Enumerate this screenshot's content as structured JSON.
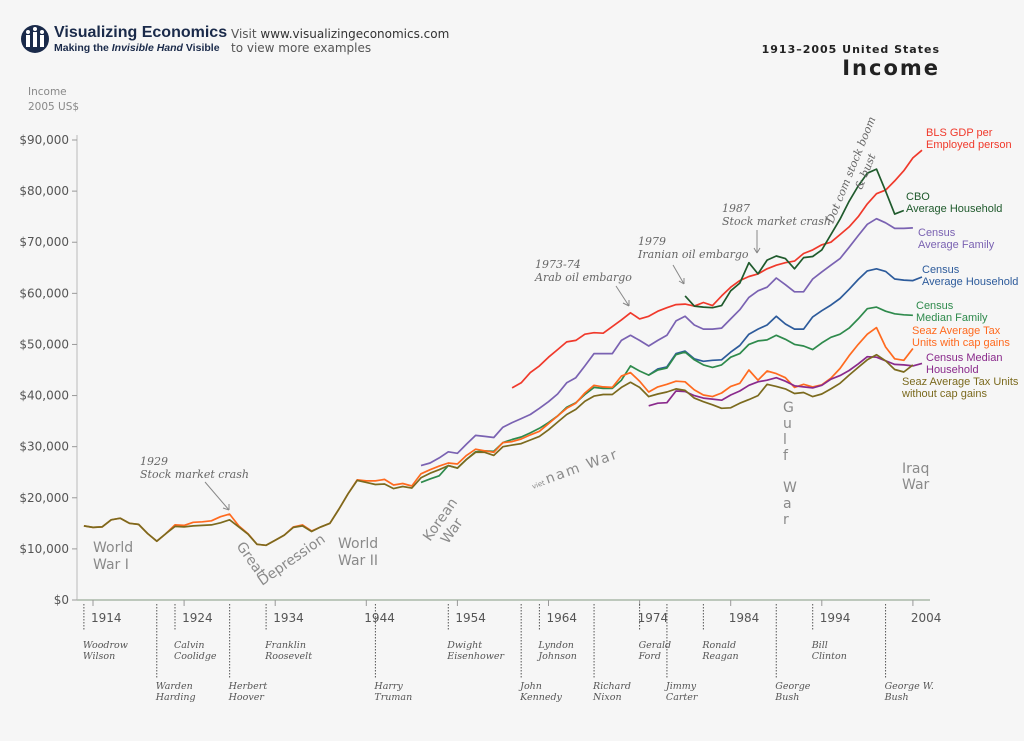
{
  "header": {
    "logo_title": "Visualizing Economics",
    "logo_tagline_pre": "Making the ",
    "logo_tagline_em": "Invisible Hand",
    "logo_tagline_post": " Visible",
    "visit_pre": "Visit ",
    "visit_url": "www.visualizingeconomics.com",
    "visit_line2": "to view more examples",
    "supertitle": "1913–2005 United States",
    "title": "Income"
  },
  "chart_data": {
    "type": "line",
    "title": "Income",
    "subtitle": "1913–2005 United States",
    "ylabel": [
      "Income",
      "2005 US$"
    ],
    "xlim": [
      1913,
      2005
    ],
    "ylim": [
      0,
      90000
    ],
    "yticks": [
      0,
      10000,
      20000,
      30000,
      40000,
      50000,
      60000,
      70000,
      80000,
      90000
    ],
    "ytick_labels": [
      "$0",
      "$10,000",
      "$20,000",
      "$30,000",
      "$40,000",
      "$50,000",
      "$60,000",
      "$70,000",
      "$80,000",
      "$90,000"
    ],
    "xticks": [
      1914,
      1924,
      1934,
      1944,
      1954,
      1964,
      1974,
      1984,
      1994,
      2004
    ],
    "grid": false,
    "legend": "right, inline labels at line ends",
    "series": [
      {
        "name": "BLS GDP per Employed person",
        "label": [
          "BLS GDP per",
          "Employed person"
        ],
        "color": "#f0392b",
        "start": 1960,
        "values": [
          41500,
          42500,
          44500,
          45800,
          47500,
          49000,
          50500,
          50800,
          52000,
          52300,
          52200,
          53500,
          54800,
          56200,
          55000,
          55500,
          56500,
          57200,
          57800,
          57900,
          57500,
          58200,
          57600,
          59500,
          61200,
          62500,
          63300,
          63800,
          64800,
          65500,
          66000,
          66300,
          67800,
          68500,
          69500,
          70000,
          71500,
          73000,
          75000,
          77500,
          79500,
          80200,
          82000,
          84000,
          86500,
          88000
        ]
      },
      {
        "name": "CBO Average Household",
        "label": [
          "CBO",
          "Average Household"
        ],
        "color": "#1f5a2c",
        "start": 1979,
        "values": [
          59500,
          57500,
          57300,
          57200,
          57600,
          60500,
          62000,
          66000,
          63800,
          66500,
          67300,
          66800,
          64800,
          67000,
          67200,
          68500,
          71500,
          74500,
          78000,
          81000,
          83500,
          84300,
          80000,
          75500,
          76200
        ]
      },
      {
        "name": "Census Average Family",
        "label": [
          "Census",
          "Average Family"
        ],
        "color": "#7a62b2",
        "start": 1950,
        "values": [
          26300,
          26800,
          27800,
          29000,
          28700,
          30500,
          32200,
          32000,
          31800,
          33800,
          34700,
          35500,
          36300,
          37500,
          38800,
          40300,
          42500,
          43500,
          45800,
          48200,
          48200,
          48200,
          50800,
          51800,
          50800,
          49700,
          50800,
          51800,
          54600,
          55500,
          53800,
          53000,
          53000,
          53200,
          55000,
          56800,
          59200,
          60500,
          61200,
          63000,
          61700,
          60300,
          60300,
          62800,
          64200,
          65500,
          66800,
          69000,
          71300,
          73500,
          74600,
          73800,
          72700,
          72700,
          72800
        ]
      },
      {
        "name": "Census Average Household",
        "label": [
          "Census",
          "Average Household"
        ],
        "color": "#2d5b9b",
        "start": 1975,
        "values": [
          44000,
          45200,
          45600,
          48200,
          48700,
          47200,
          46700,
          46900,
          47000,
          48500,
          49800,
          52000,
          53000,
          53800,
          55500,
          54000,
          53000,
          53000,
          55400,
          56600,
          57700,
          59000,
          60800,
          62700,
          64400,
          64800,
          64300,
          62800,
          62600,
          62500,
          63200
        ]
      },
      {
        "name": "Census Median Family",
        "label": [
          "Census",
          "Median Family"
        ],
        "color": "#2e8a4c",
        "start": 1950,
        "values": [
          23000,
          23700,
          24300,
          26300,
          25800,
          27500,
          29000,
          29200,
          29100,
          30800,
          31400,
          31900,
          32700,
          33600,
          34700,
          36000,
          37700,
          38600,
          40200,
          41600,
          41400,
          41400,
          43000,
          45800,
          44800,
          44000,
          45000,
          45400,
          48000,
          48500,
          47000,
          46000,
          45500,
          46000,
          47500,
          48200,
          50000,
          50700,
          50900,
          51800,
          51000,
          50000,
          49700,
          49000,
          50300,
          51400,
          52000,
          53200,
          55000,
          57000,
          57300,
          56500,
          56000,
          55800,
          55700
        ]
      },
      {
        "name": "Seaz Average Tax Units with cap gains",
        "label": [
          "Seaz Average Tax",
          "Units with cap gains"
        ],
        "color": "#ff6a1f",
        "start": 1913,
        "values": [
          14500,
          14200,
          14300,
          15700,
          16000,
          15000,
          14800,
          13000,
          11500,
          13000,
          14700,
          14600,
          15200,
          15300,
          15500,
          16300,
          16800,
          14500,
          13000,
          10900,
          10700,
          11700,
          12700,
          14300,
          14700,
          13500,
          14300,
          15000,
          17800,
          20800,
          23500,
          23300,
          23300,
          23600,
          22500,
          22800,
          22300,
          24700,
          25500,
          26200,
          26800,
          26600,
          28300,
          29500,
          29200,
          28900,
          30800,
          31000,
          31500,
          32300,
          33000,
          34500,
          36000,
          37500,
          38500,
          40500,
          42000,
          41700,
          41600,
          43800,
          44500,
          42800,
          40700,
          41700,
          42200,
          42800,
          42700,
          41100,
          40100,
          39800,
          40500,
          41800,
          42400,
          45000,
          43000,
          44800,
          44300,
          43500,
          41600,
          42200,
          41700,
          42100,
          43400,
          45300,
          47800,
          50000,
          52000,
          53300,
          49500,
          47200,
          46900,
          49200
        ]
      },
      {
        "name": "Census Median Household",
        "label": [
          "Census Median",
          "Household"
        ],
        "color": "#8a2a8c",
        "start": 1975,
        "values": [
          38000,
          38500,
          38600,
          40900,
          40800,
          40000,
          39500,
          39300,
          39100,
          40100,
          40900,
          42000,
          42700,
          43000,
          43500,
          42800,
          41900,
          41700,
          41500,
          42000,
          43200,
          43900,
          44900,
          46200,
          47600,
          47500,
          46800,
          46100,
          46000,
          45800,
          46300
        ]
      },
      {
        "name": "Seaz Average Tax Units without cap gains",
        "label": [
          "Seaz Average Tax Units",
          "without cap gains"
        ],
        "color": "#7b6a1e",
        "start": 1913,
        "values": [
          14500,
          14200,
          14300,
          15700,
          16000,
          15000,
          14800,
          13000,
          11500,
          13000,
          14400,
          14300,
          14500,
          14600,
          14700,
          15100,
          15700,
          14300,
          12900,
          10900,
          10700,
          11700,
          12700,
          14200,
          14500,
          13400,
          14300,
          15000,
          17800,
          20800,
          23400,
          23000,
          22600,
          22700,
          21800,
          22200,
          21900,
          23900,
          24800,
          25500,
          26300,
          25800,
          27500,
          28900,
          28900,
          28300,
          30000,
          30300,
          30600,
          31300,
          32000,
          33300,
          34800,
          36300,
          37300,
          38900,
          39900,
          40200,
          40200,
          41600,
          42600,
          41600,
          39800,
          40300,
          40700,
          41300,
          41000,
          39500,
          38800,
          38200,
          37500,
          37600,
          38500,
          39200,
          40000,
          42200,
          41800,
          41300,
          40400,
          40600,
          39800,
          40300,
          41300,
          42400,
          44000,
          45500,
          47000,
          48000,
          46800,
          45100,
          44600,
          46000
        ]
      }
    ],
    "annotations": [
      {
        "text": [
          "1929",
          "Stock market crash"
        ],
        "year": 1929
      },
      {
        "text": [
          "1973-74",
          "Arab oil embargo"
        ],
        "year": 1973
      },
      {
        "text": [
          "1979",
          "Iranian oil embargo"
        ],
        "year": 1979
      },
      {
        "text": [
          "1987",
          "Stock market crash"
        ],
        "year": 1987
      },
      {
        "text": [
          "Dot com stock boom",
          "& bust"
        ],
        "year": 2000
      }
    ],
    "wars": {
      "ww1": [
        "World",
        "War I"
      ],
      "depression": [
        "Great",
        "Depression"
      ],
      "ww2": [
        "World",
        "War II"
      ],
      "korea": [
        "Korean",
        "War"
      ],
      "vietnam": [
        "viet",
        "nam",
        "War"
      ],
      "gulf": [
        "G",
        "u",
        "l",
        "f",
        "",
        "W",
        "a",
        "r"
      ],
      "iraq": [
        "Iraq",
        "War"
      ]
    },
    "presidents": [
      {
        "name": [
          "Woodrow",
          "Wilson"
        ],
        "year": 1913,
        "row": 1
      },
      {
        "name": [
          "Warden",
          "Harding"
        ],
        "year": 1921,
        "row": 2
      },
      {
        "name": [
          "Calvin",
          "Coolidge"
        ],
        "year": 1923,
        "row": 1
      },
      {
        "name": [
          "Herbert",
          "Hoover"
        ],
        "year": 1929,
        "row": 2
      },
      {
        "name": [
          "Franklin",
          "Roosevelt"
        ],
        "year": 1933,
        "row": 1
      },
      {
        "name": [
          "Harry",
          "Truman"
        ],
        "year": 1945,
        "row": 2
      },
      {
        "name": [
          "Dwight",
          "Eisenhower"
        ],
        "year": 1953,
        "row": 1
      },
      {
        "name": [
          "John",
          "Kennedy"
        ],
        "year": 1961,
        "row": 2
      },
      {
        "name": [
          "Lyndon",
          "Johnson"
        ],
        "year": 1963,
        "row": 1
      },
      {
        "name": [
          "Richard",
          "Nixon"
        ],
        "year": 1969,
        "row": 2
      },
      {
        "name": [
          "Gerald",
          "Ford"
        ],
        "year": 1974,
        "row": 1
      },
      {
        "name": [
          "Jimmy",
          "Carter"
        ],
        "year": 1977,
        "row": 2
      },
      {
        "name": [
          "Ronald",
          "Reagan"
        ],
        "year": 1981,
        "row": 1
      },
      {
        "name": [
          "George",
          "Bush"
        ],
        "year": 1989,
        "row": 2
      },
      {
        "name": [
          "Bill",
          "Clinton"
        ],
        "year": 1993,
        "row": 1
      },
      {
        "name": [
          "George W.",
          "Bush"
        ],
        "year": 2001,
        "row": 2
      }
    ]
  }
}
